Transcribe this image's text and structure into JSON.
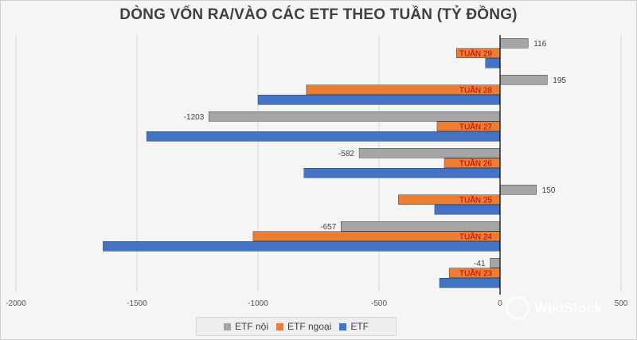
{
  "chart_data": {
    "type": "bar",
    "orientation": "horizontal",
    "title": "DÒNG VỐN RA/VÀO CÁC ETF THEO TUẦN (TỶ ĐỒNG)",
    "categories": [
      "TUẦN 29",
      "TUẦN 28",
      "TUẦN 27",
      "TUẦN 26",
      "TUẦN 25",
      "TUẦN 24",
      "TUẦN 23"
    ],
    "series": [
      {
        "name": "ETF nội",
        "color": "#a5a5a5",
        "values": [
          116,
          195,
          -1203,
          -582,
          150,
          -657,
          -41
        ],
        "labeled": true
      },
      {
        "name": "ETF ngoại",
        "color": "#ed7d31",
        "values": [
          -180,
          -800,
          -260,
          -230,
          -420,
          -1020,
          -210
        ],
        "labeled": false
      },
      {
        "name": "ETF",
        "color": "#4472c4",
        "values": [
          -60,
          -1000,
          -1460,
          -810,
          -270,
          -1640,
          -250
        ],
        "labeled": false
      }
    ],
    "xlim": [
      -2000,
      500
    ],
    "xticks": [
      "-2000",
      "-1500",
      "-1000",
      "-500",
      "0",
      "500"
    ],
    "grid": true,
    "legend_position": "bottom"
  },
  "watermark": {
    "text": "WikiStock"
  }
}
